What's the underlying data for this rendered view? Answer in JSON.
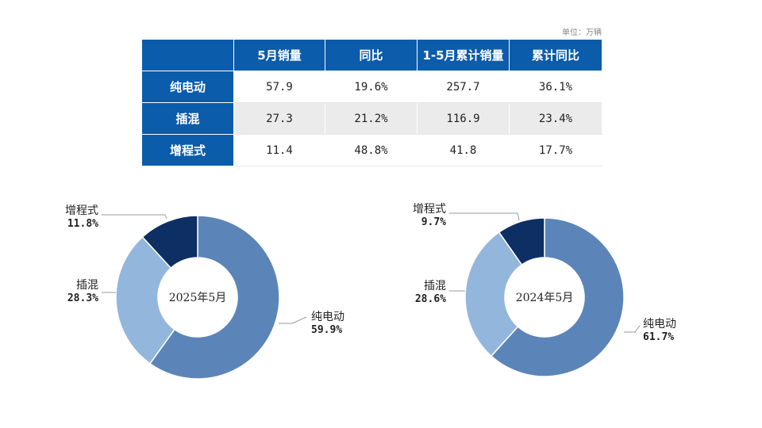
{
  "unit_label": "单位：万辆",
  "table": {
    "headers": [
      "",
      "5月销量",
      "同比",
      "1-5月累计销量",
      "累计同比"
    ],
    "rows": [
      {
        "name": "纯电动",
        "cells": [
          "57.9",
          "19.6%",
          "257.7",
          "36.1%"
        ]
      },
      {
        "name": "插混",
        "cells": [
          "27.3",
          "21.2%",
          "116.9",
          "23.4%"
        ]
      },
      {
        "name": "增程式",
        "cells": [
          "11.4",
          "48.8%",
          "41.8",
          "17.7%"
        ]
      }
    ]
  },
  "chart_data": [
    {
      "type": "pie",
      "donut": true,
      "center_label": "2025年5月",
      "slices": [
        {
          "label": "纯电动",
          "value": 59.9,
          "pct_text": "59.9%",
          "color": "#5b85b8"
        },
        {
          "label": "插混",
          "value": 28.3,
          "pct_text": "28.3%",
          "color": "#93b6dc"
        },
        {
          "label": "增程式",
          "value": 11.8,
          "pct_text": "11.8%",
          "color": "#0d2f63"
        }
      ]
    },
    {
      "type": "pie",
      "donut": true,
      "center_label": "2024年5月",
      "slices": [
        {
          "label": "纯电动",
          "value": 61.7,
          "pct_text": "61.7%",
          "color": "#5b85b8"
        },
        {
          "label": "插混",
          "value": 28.6,
          "pct_text": "28.6%",
          "color": "#93b6dc"
        },
        {
          "label": "增程式",
          "value": 9.7,
          "pct_text": "9.7%",
          "color": "#0d2f63"
        }
      ]
    }
  ]
}
